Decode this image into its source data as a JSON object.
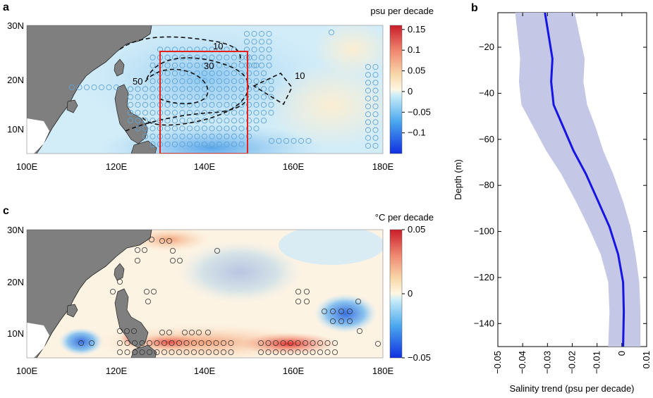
{
  "colors": {
    "land": "#7f7f7f",
    "contour": "#111111",
    "box": "#e8201c",
    "profile_line": "#1515e6",
    "profile_band": "#c5c7e6",
    "stipple_a": "#5fa3d6",
    "stipple_c": "#333333"
  },
  "panel_a": {
    "label": "a",
    "colorbar_title": "psu per decade",
    "colorbar_ticks": [
      "0.15",
      "0.1",
      "0.05",
      "0",
      "−0.05",
      "−0.1"
    ],
    "colorbar_tick_values": [
      0.15,
      0.1,
      0.05,
      0,
      -0.05,
      -0.1
    ],
    "colorbar_range": [
      -0.15,
      0.16
    ],
    "x_ticks": [
      "100E",
      "120E",
      "140E",
      "160E",
      "180E"
    ],
    "y_ticks": [
      "30N",
      "20N",
      "10N"
    ],
    "contour_labels": [
      "10",
      "30",
      "50",
      "10"
    ],
    "box_extent": {
      "lon": [
        132,
        150
      ],
      "lat": [
        5,
        25
      ]
    }
  },
  "panel_c": {
    "label": "c",
    "colorbar_title": "°C per decade",
    "colorbar_ticks": [
      "0.05",
      "0",
      "−0.05"
    ],
    "colorbar_tick_values": [
      0.05,
      0,
      -0.05
    ],
    "colorbar_range": [
      -0.05,
      0.05
    ],
    "x_ticks": [
      "100E",
      "120E",
      "140E",
      "160E",
      "180E"
    ],
    "y_ticks": [
      "30N",
      "20N",
      "10N"
    ]
  },
  "chart_data": {
    "type": "line",
    "panel": "b",
    "xlabel": "Salinity trend (psu per decade)",
    "ylabel": "Depth (m)",
    "xlim": [
      -0.05,
      0.01
    ],
    "ylim": [
      -150,
      -5
    ],
    "x_ticks": [
      "−0.05",
      "−0.04",
      "−0.03",
      "−0.02",
      "−0.01",
      "0",
      "0.01"
    ],
    "x_tick_values": [
      -0.05,
      -0.04,
      -0.03,
      -0.02,
      -0.01,
      0,
      0.01
    ],
    "y_ticks": [
      "−20",
      "−40",
      "−60",
      "−80",
      "−100",
      "−120",
      "−140"
    ],
    "y_tick_values": [
      -20,
      -40,
      -60,
      -80,
      -100,
      -120,
      -140
    ],
    "series": [
      {
        "depth": [
          -5,
          -15,
          -25,
          -35,
          -45,
          -55,
          -65,
          -75,
          -87,
          -98,
          -110,
          -122,
          -135,
          -150
        ],
        "mean": [
          -0.031,
          -0.0295,
          -0.028,
          -0.0285,
          -0.0275,
          -0.0235,
          -0.0195,
          -0.0145,
          -0.0095,
          -0.005,
          -0.0015,
          0.0005,
          0.0008,
          0.0005
        ],
        "lower": [
          -0.043,
          -0.042,
          -0.041,
          -0.0415,
          -0.0405,
          -0.0355,
          -0.0305,
          -0.0245,
          -0.0185,
          -0.0135,
          -0.0085,
          -0.0055,
          -0.005,
          -0.0055
        ],
        "upper": [
          -0.019,
          -0.017,
          -0.015,
          -0.0155,
          -0.014,
          -0.0105,
          -0.0075,
          -0.0035,
          0.0005,
          0.0035,
          0.0055,
          0.007,
          0.0075,
          0.0075
        ]
      }
    ],
    "grid": false
  }
}
